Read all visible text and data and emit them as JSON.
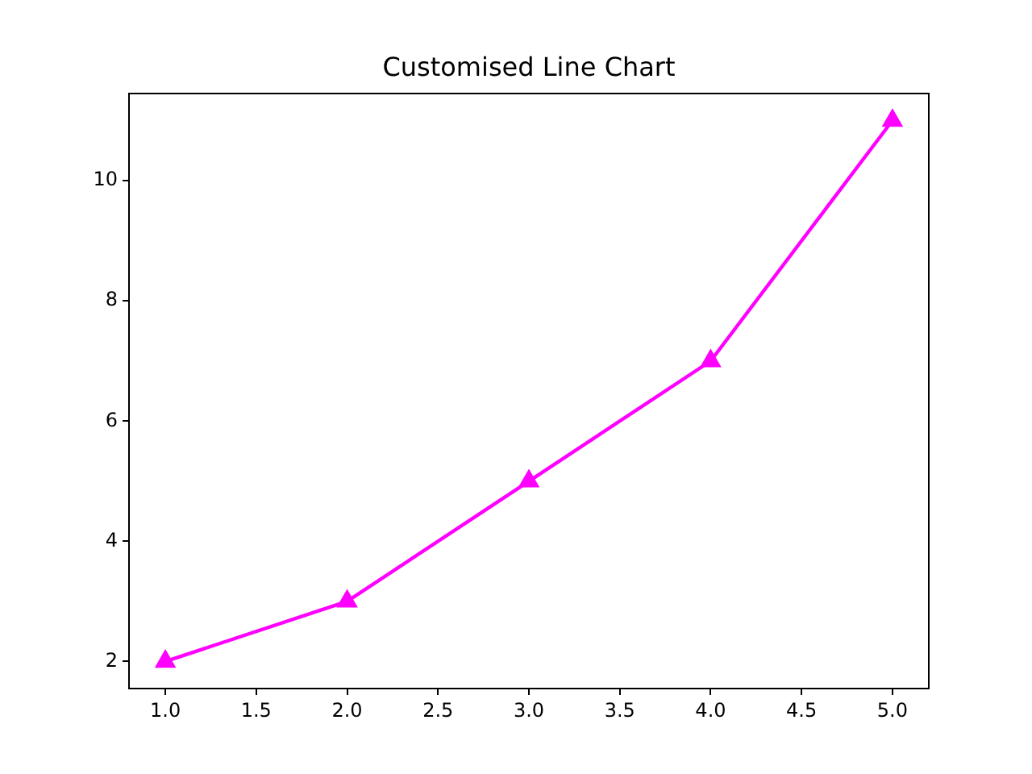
{
  "chart_data": {
    "type": "line",
    "title": "Customised Line Chart",
    "x": [
      1,
      2,
      3,
      4,
      5
    ],
    "series": [
      {
        "color": "#ff00ff",
        "values": [
          2,
          3,
          5,
          7,
          11
        ]
      }
    ],
    "marker": "triangle",
    "line_style": "solid",
    "grid": false,
    "legend": false,
    "xlim": [
      0.8,
      5.2
    ],
    "xticks": [
      {
        "value": 1,
        "label": "1.0"
      },
      {
        "value": 1.5,
        "label": "1.5"
      },
      {
        "value": 2,
        "label": "2.0"
      },
      {
        "value": 2.5,
        "label": "2.5"
      },
      {
        "value": 3,
        "label": "3.0"
      },
      {
        "value": 3.5,
        "label": "3.5"
      },
      {
        "value": 4,
        "label": "4.0"
      },
      {
        "value": 4.5,
        "label": "4.5"
      },
      {
        "value": 5,
        "label": "5.0"
      }
    ],
    "ylim": [
      1.55,
      11.45
    ],
    "yticks": [
      2,
      4,
      6,
      8,
      10
    ]
  }
}
